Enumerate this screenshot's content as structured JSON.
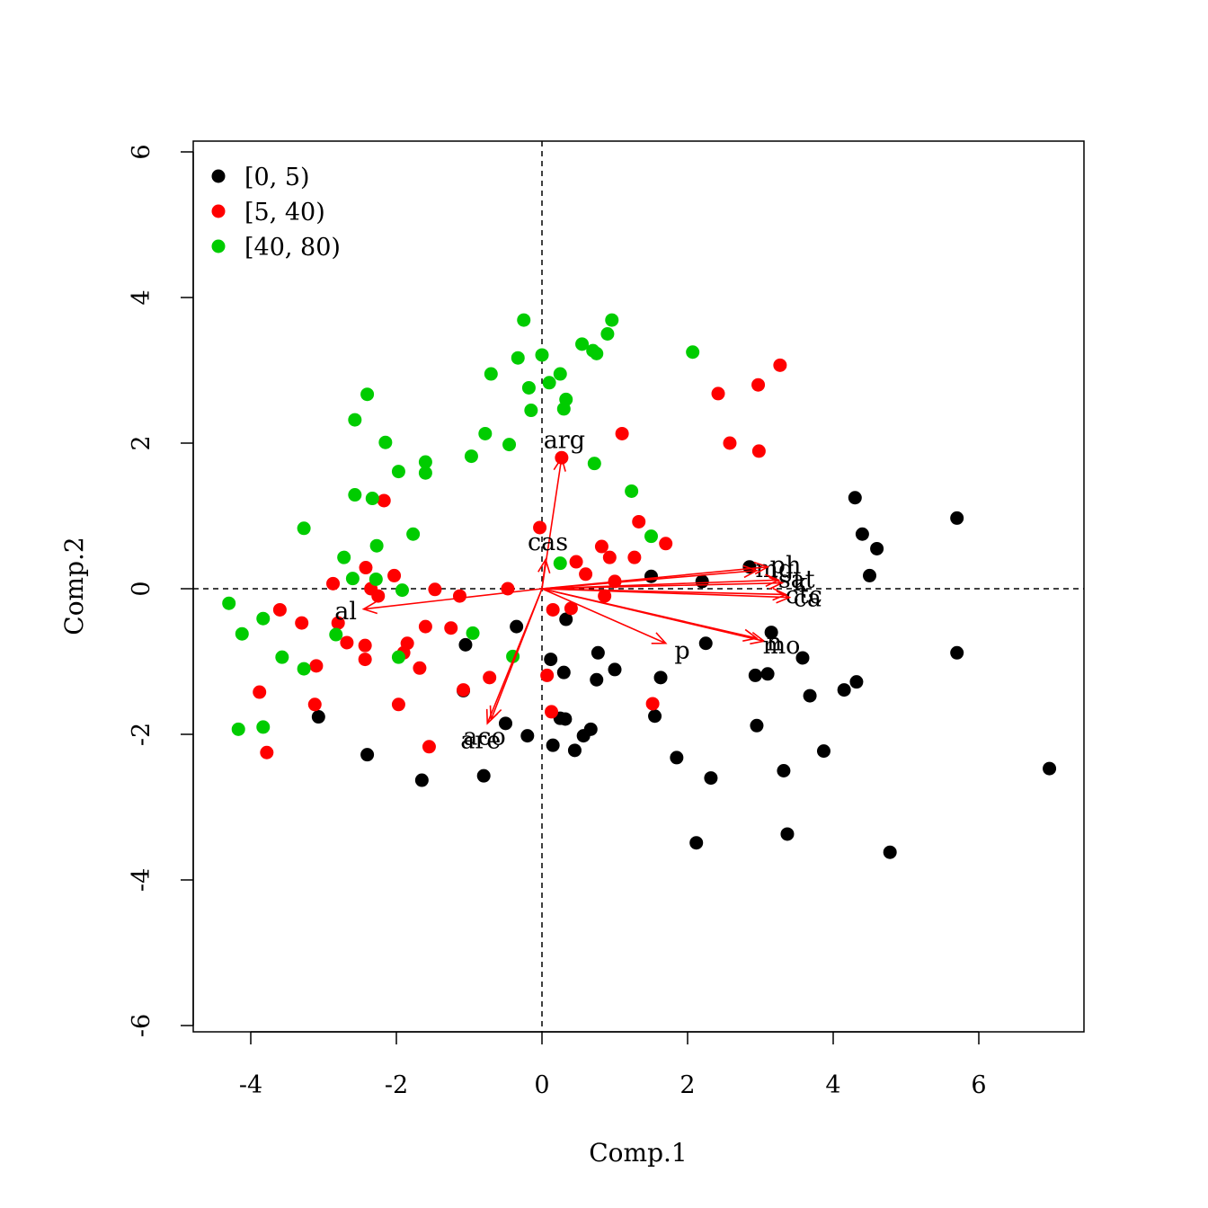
{
  "chart_data": {
    "type": "scatter",
    "title": "",
    "xlabel": "Comp.1",
    "ylabel": "Comp.2",
    "xlim": [
      -4.8,
      7.4
    ],
    "ylim": [
      -6.1,
      6.15
    ],
    "xticks": [
      -4,
      -2,
      0,
      2,
      4,
      6
    ],
    "yticks": [
      -6,
      -4,
      -2,
      0,
      2,
      4,
      6
    ],
    "xtick_labels": [
      "-4",
      "-2",
      "0",
      "2",
      "4",
      "6"
    ],
    "ytick_labels": [
      "-6",
      "-4",
      "-2",
      "0",
      "2",
      "4",
      "6"
    ],
    "reference_lines": {
      "x": 0,
      "y": 0,
      "style": "dashed"
    },
    "legend": {
      "placement": "top-left",
      "entries": [
        "[0, 5)",
        "[5, 40)",
        "[40, 80)"
      ]
    },
    "series": [
      {
        "name": "[0, 5)",
        "color": "#000000",
        "points": [
          [
            4.3,
            1.25
          ],
          [
            4.4,
            0.75
          ],
          [
            4.6,
            0.55
          ],
          [
            4.5,
            0.18
          ],
          [
            5.7,
            0.97
          ],
          [
            5.7,
            -0.88
          ],
          [
            6.97,
            -2.47
          ],
          [
            2.85,
            0.3
          ],
          [
            2.2,
            0.1
          ],
          [
            1.5,
            0.17
          ],
          [
            0.33,
            -0.42
          ],
          [
            -0.35,
            -0.52
          ],
          [
            -1.05,
            -0.77
          ],
          [
            0.12,
            -0.97
          ],
          [
            0.3,
            -1.15
          ],
          [
            0.77,
            -0.88
          ],
          [
            1.0,
            -1.11
          ],
          [
            0.75,
            -1.25
          ],
          [
            1.63,
            -1.22
          ],
          [
            2.25,
            -0.75
          ],
          [
            3.15,
            -0.6
          ],
          [
            3.58,
            -0.95
          ],
          [
            2.93,
            -1.19
          ],
          [
            3.1,
            -1.17
          ],
          [
            3.68,
            -1.47
          ],
          [
            4.15,
            -1.39
          ],
          [
            4.32,
            -1.28
          ],
          [
            2.95,
            -1.88
          ],
          [
            1.55,
            -1.75
          ],
          [
            1.85,
            -2.32
          ],
          [
            2.32,
            -2.6
          ],
          [
            3.32,
            -2.5
          ],
          [
            3.87,
            -2.23
          ],
          [
            2.12,
            -3.49
          ],
          [
            3.37,
            -3.37
          ],
          [
            4.78,
            -3.62
          ],
          [
            -3.07,
            -1.76
          ],
          [
            -2.4,
            -2.28
          ],
          [
            -1.65,
            -2.63
          ],
          [
            -0.8,
            -2.57
          ],
          [
            -0.5,
            -1.85
          ],
          [
            -0.2,
            -2.02
          ],
          [
            0.25,
            -1.78
          ],
          [
            0.32,
            -1.79
          ],
          [
            0.15,
            -2.15
          ],
          [
            0.45,
            -2.22
          ],
          [
            0.57,
            -2.02
          ],
          [
            0.67,
            -1.93
          ],
          [
            -1.08,
            -1.4
          ]
        ]
      },
      {
        "name": "[5, 40)",
        "color": "#ff0000",
        "points": [
          [
            3.27,
            3.07
          ],
          [
            2.97,
            2.8
          ],
          [
            2.42,
            2.68
          ],
          [
            2.58,
            2.0
          ],
          [
            2.98,
            1.89
          ],
          [
            1.1,
            2.13
          ],
          [
            0.27,
            1.8
          ],
          [
            -2.17,
            1.21
          ],
          [
            -0.03,
            0.84
          ],
          [
            1.33,
            0.92
          ],
          [
            1.7,
            0.62
          ],
          [
            0.82,
            0.58
          ],
          [
            0.93,
            0.43
          ],
          [
            1.27,
            0.43
          ],
          [
            0.47,
            0.37
          ],
          [
            0.6,
            0.2
          ],
          [
            1.0,
            0.1
          ],
          [
            -2.42,
            0.29
          ],
          [
            -2.03,
            0.18
          ],
          [
            -2.87,
            0.07
          ],
          [
            -2.35,
            0.0
          ],
          [
            -2.25,
            -0.1
          ],
          [
            -1.47,
            -0.01
          ],
          [
            -1.13,
            -0.1
          ],
          [
            -0.47,
            0.0
          ],
          [
            0.86,
            -0.1
          ],
          [
            0.15,
            -0.29
          ],
          [
            0.4,
            -0.27
          ],
          [
            -3.6,
            -0.29
          ],
          [
            -3.3,
            -0.47
          ],
          [
            -2.8,
            -0.47
          ],
          [
            -1.6,
            -0.52
          ],
          [
            -1.25,
            -0.54
          ],
          [
            -2.68,
            -0.74
          ],
          [
            -2.43,
            -0.78
          ],
          [
            -1.85,
            -0.75
          ],
          [
            -1.9,
            -0.88
          ],
          [
            -2.43,
            -0.97
          ],
          [
            -3.1,
            -1.06
          ],
          [
            -1.68,
            -1.09
          ],
          [
            -0.72,
            -1.22
          ],
          [
            0.07,
            -1.19
          ],
          [
            -1.08,
            -1.39
          ],
          [
            -3.88,
            -1.42
          ],
          [
            -3.12,
            -1.59
          ],
          [
            -1.97,
            -1.59
          ],
          [
            1.52,
            -1.58
          ],
          [
            0.13,
            -1.69
          ],
          [
            -1.55,
            -2.17
          ],
          [
            -3.78,
            -2.25
          ]
        ]
      },
      {
        "name": "[40, 80)",
        "color": "#00cc00",
        "points": [
          [
            -0.25,
            3.69
          ],
          [
            0.96,
            3.69
          ],
          [
            0.9,
            3.5
          ],
          [
            0.55,
            3.36
          ],
          [
            0.7,
            3.27
          ],
          [
            0.75,
            3.23
          ],
          [
            2.07,
            3.25
          ],
          [
            -0.33,
            3.17
          ],
          [
            0.0,
            3.21
          ],
          [
            0.25,
            2.95
          ],
          [
            -0.7,
            2.95
          ],
          [
            -0.18,
            2.76
          ],
          [
            0.1,
            2.83
          ],
          [
            0.33,
            2.6
          ],
          [
            0.3,
            2.47
          ],
          [
            -0.15,
            2.45
          ],
          [
            -2.4,
            2.67
          ],
          [
            -2.57,
            2.32
          ],
          [
            -2.15,
            2.01
          ],
          [
            -0.78,
            2.13
          ],
          [
            -0.45,
            1.98
          ],
          [
            -0.97,
            1.82
          ],
          [
            -1.6,
            1.74
          ],
          [
            -1.6,
            1.59
          ],
          [
            -1.97,
            1.61
          ],
          [
            0.72,
            1.72
          ],
          [
            1.23,
            1.34
          ],
          [
            -2.57,
            1.29
          ],
          [
            -2.33,
            1.24
          ],
          [
            -3.27,
            0.83
          ],
          [
            -1.77,
            0.75
          ],
          [
            -2.27,
            0.59
          ],
          [
            1.5,
            0.72
          ],
          [
            -2.72,
            0.43
          ],
          [
            0.25,
            0.35
          ],
          [
            -2.6,
            0.14
          ],
          [
            -2.28,
            0.13
          ],
          [
            -1.92,
            -0.02
          ],
          [
            -4.3,
            -0.2
          ],
          [
            -3.83,
            -0.41
          ],
          [
            -4.12,
            -0.62
          ],
          [
            -2.83,
            -0.63
          ],
          [
            -0.95,
            -0.61
          ],
          [
            -3.57,
            -0.94
          ],
          [
            -3.27,
            -1.1
          ],
          [
            -1.97,
            -0.94
          ],
          [
            -0.4,
            -0.93
          ],
          [
            -4.17,
            -1.93
          ],
          [
            -3.83,
            -1.9
          ]
        ]
      }
    ],
    "loadings": [
      {
        "label": "arg",
        "x": 0.27,
        "y": 1.8
      },
      {
        "label": "cas",
        "x": 0.05,
        "y": 0.4
      },
      {
        "label": "mg",
        "x": 2.95,
        "y": 0.25
      },
      {
        "label": "ph",
        "x": 3.1,
        "y": 0.3
      },
      {
        "label": "k",
        "x": 3.3,
        "y": 0.08
      },
      {
        "label": "sat",
        "x": 3.25,
        "y": 0.12
      },
      {
        "label": "ctc",
        "x": 3.35,
        "y": -0.08
      },
      {
        "label": "ca",
        "x": 3.4,
        "y": -0.12
      },
      {
        "label": "mo",
        "x": 3.05,
        "y": -0.72
      },
      {
        "label": "n",
        "x": 2.95,
        "y": -0.68
      },
      {
        "label": "p",
        "x": 1.7,
        "y": -0.75
      },
      {
        "label": "al",
        "x": -2.45,
        "y": -0.28
      },
      {
        "label": "aco",
        "x": -0.7,
        "y": -1.8
      },
      {
        "label": "are",
        "x": -0.75,
        "y": -1.85
      }
    ],
    "loading_color": "#ff0000",
    "grid": false
  }
}
